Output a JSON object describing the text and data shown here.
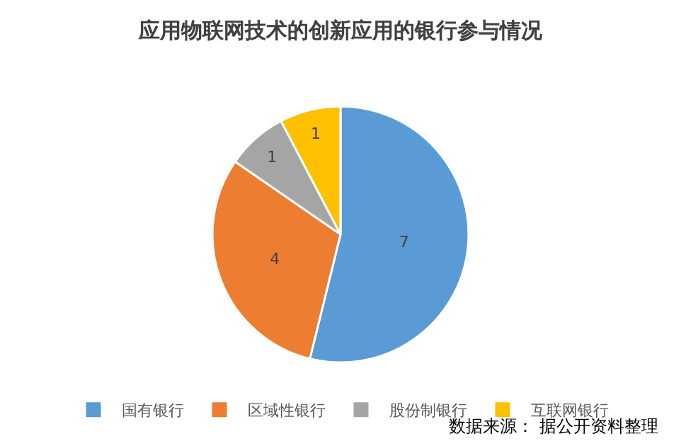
{
  "chart_data": {
    "type": "pie",
    "title": "应用物联网技术的创新应用的银行参与情况",
    "categories": [
      "国有银行",
      "区域性银行",
      "股份制银行",
      "互联网银行"
    ],
    "values": [
      7,
      4,
      1,
      1
    ],
    "colors": [
      "#5b9bd5",
      "#ed7d31",
      "#a5a5a5",
      "#ffc000"
    ],
    "data_labels": true,
    "legend": "bottom",
    "annotations": [
      "数据来源： 据公开资料整理"
    ]
  }
}
